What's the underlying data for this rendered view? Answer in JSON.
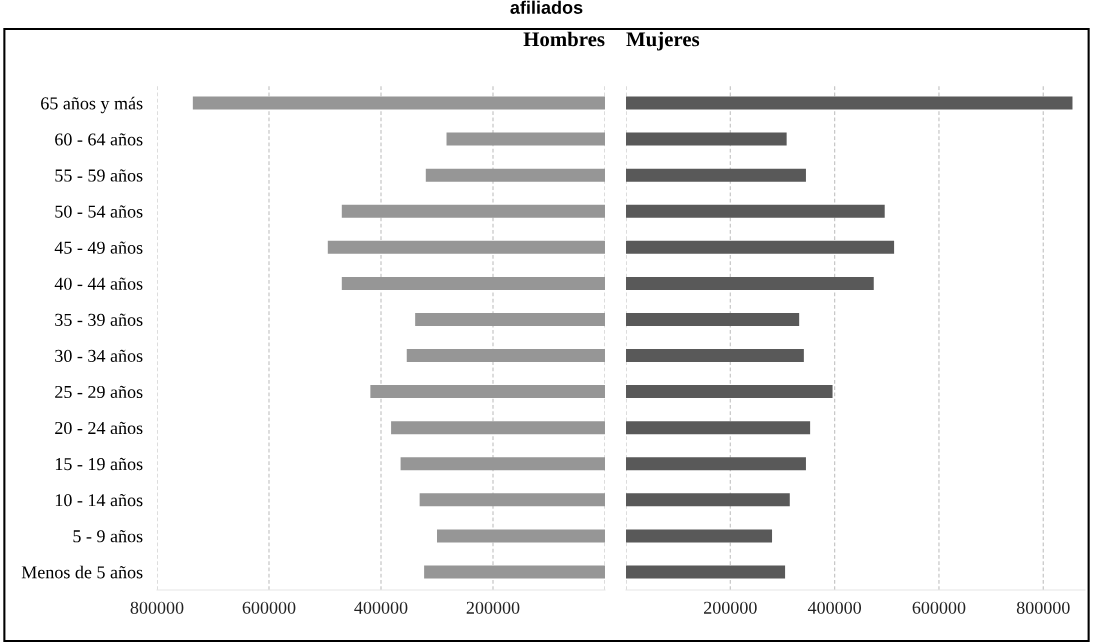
{
  "chart_data": [
    {
      "type": "bar",
      "orientation": "horizontal",
      "title": "Hombres",
      "annotations": [
        "afiliados"
      ],
      "categories": [
        "65 años y más",
        "60 - 64 años",
        "55 - 59 años",
        "50 - 54 años",
        "45 - 49 años",
        "40 - 44 años",
        "35 - 39 años",
        "30 - 34 años",
        "25 - 29 años",
        "20 - 24 años",
        "15 - 19 años",
        "10 - 14 años",
        "5 - 9 años",
        "Menos de 5 años"
      ],
      "series": [
        {
          "color": "#969696",
          "values": [
            736000,
            283000,
            320000,
            470000,
            495000,
            470000,
            339000,
            354000,
            419000,
            382000,
            365000,
            331000,
            300000,
            323000
          ]
        }
      ],
      "xlim": [
        800000,
        0
      ],
      "xticks": [
        800000,
        600000,
        400000,
        200000,
        {
          "value": 0,
          "label": null
        }
      ],
      "grid": "x"
    },
    {
      "type": "bar",
      "orientation": "horizontal",
      "title": "Mujeres",
      "tick_labels": "x",
      "series": [
        {
          "color": "#595959",
          "values": [
            856000,
            308000,
            345000,
            496000,
            514000,
            475000,
            332000,
            341000,
            396000,
            353000,
            345000,
            314000,
            280000,
            305000
          ]
        }
      ],
      "xlim": [
        0,
        880000
      ],
      "xticks": [
        {
          "value": 0,
          "label": null
        },
        200000,
        400000,
        600000,
        800000
      ],
      "grid": "x"
    }
  ]
}
